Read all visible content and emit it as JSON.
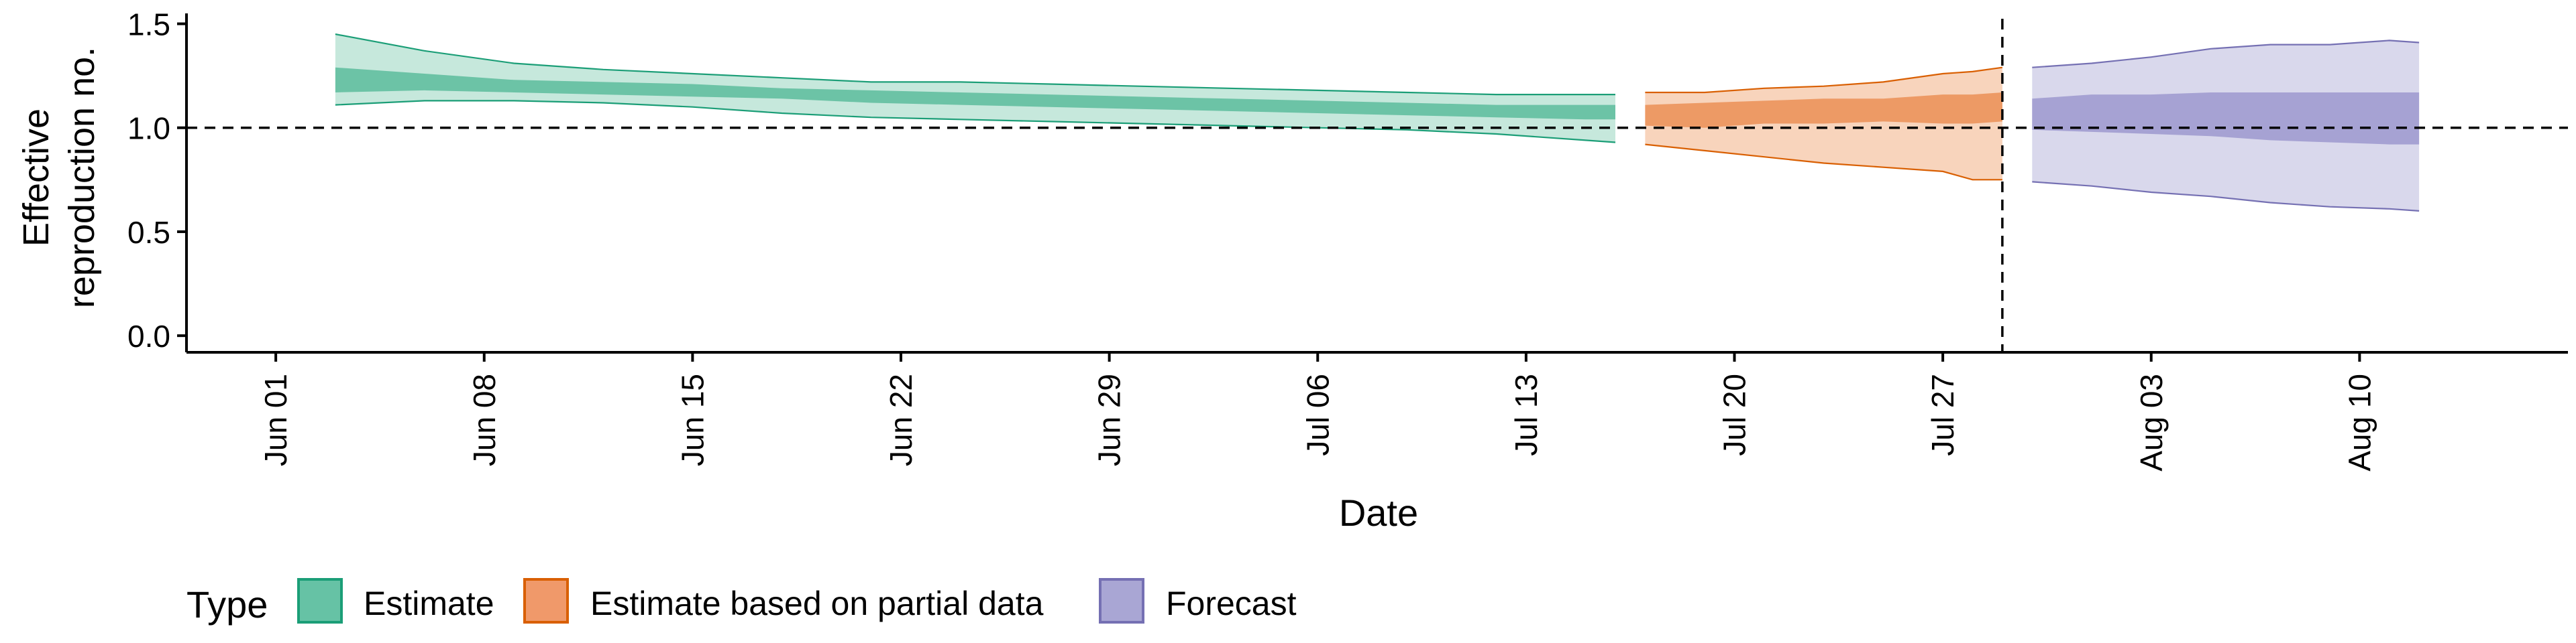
{
  "chart_data": {
    "type": "area",
    "xlabel": "Date",
    "ylabel_lines": [
      "Effective",
      "reproduction no."
    ],
    "ylim": [
      -0.08,
      1.55
    ],
    "yticks": [
      0.0,
      0.5,
      1.0,
      1.5
    ],
    "ytick_labels": [
      "0.0",
      "0.5",
      "1.0",
      "1.5"
    ],
    "xlim": [
      "2020-05-29",
      "2020-08-17"
    ],
    "xticks": [
      "2020-06-01",
      "2020-06-08",
      "2020-06-15",
      "2020-06-22",
      "2020-06-29",
      "2020-07-06",
      "2020-07-13",
      "2020-07-20",
      "2020-07-27",
      "2020-08-03",
      "2020-08-10"
    ],
    "xtick_labels": [
      "Jun 01",
      "Jun 08",
      "Jun 15",
      "Jun 22",
      "Jun 29",
      "Jul 06",
      "Jul 13",
      "Jul 20",
      "Jul 27",
      "Aug 03",
      "Aug 10"
    ],
    "reference_hline": 1.0,
    "reference_vline": "2020-07-29",
    "legend": {
      "title": "Type",
      "position": "bottom",
      "entries": [
        {
          "label": "Estimate",
          "fill": "#66c2a5",
          "stroke": "#1b9e77"
        },
        {
          "label": "Estimate based on partial data",
          "fill": "#f0996a",
          "stroke": "#d95f02"
        },
        {
          "label": "Forecast",
          "fill": "#a9a6d4",
          "stroke": "#7570b3"
        }
      ]
    },
    "colors": {
      "estimate": {
        "light": "#c6e8dc",
        "dark": "#6cc3a6",
        "line": "#1b9e77"
      },
      "partial": {
        "light": "#f8d4bc",
        "dark": "#ed9a65",
        "line": "#d95f02"
      },
      "forecast": {
        "light": "#d9d8ec",
        "dark": "#a6a2d3",
        "line": "#7570b3"
      }
    },
    "series": [
      {
        "name": "Estimate",
        "key": "estimate",
        "x": [
          "2020-06-03",
          "2020-06-06",
          "2020-06-09",
          "2020-06-12",
          "2020-06-15",
          "2020-06-18",
          "2020-06-21",
          "2020-06-24",
          "2020-06-27",
          "2020-06-30",
          "2020-07-03",
          "2020-07-06",
          "2020-07-09",
          "2020-07-12",
          "2020-07-15",
          "2020-07-16"
        ],
        "lower90": [
          1.11,
          1.13,
          1.13,
          1.12,
          1.1,
          1.07,
          1.05,
          1.04,
          1.03,
          1.02,
          1.01,
          1.0,
          0.99,
          0.97,
          0.94,
          0.93
        ],
        "upper90": [
          1.45,
          1.37,
          1.31,
          1.28,
          1.26,
          1.24,
          1.22,
          1.22,
          1.21,
          1.2,
          1.19,
          1.18,
          1.17,
          1.16,
          1.16,
          1.16
        ],
        "lower50": [
          1.17,
          1.18,
          1.17,
          1.16,
          1.15,
          1.14,
          1.12,
          1.11,
          1.1,
          1.09,
          1.08,
          1.07,
          1.06,
          1.05,
          1.04,
          1.04
        ],
        "upper50": [
          1.29,
          1.26,
          1.23,
          1.22,
          1.21,
          1.19,
          1.18,
          1.17,
          1.16,
          1.15,
          1.14,
          1.13,
          1.12,
          1.11,
          1.11,
          1.11
        ]
      },
      {
        "name": "Estimate based on partial data",
        "key": "partial",
        "x": [
          "2020-07-17",
          "2020-07-19",
          "2020-07-21",
          "2020-07-23",
          "2020-07-25",
          "2020-07-27",
          "2020-07-28",
          "2020-07-29"
        ],
        "lower90": [
          0.92,
          0.89,
          0.86,
          0.83,
          0.81,
          0.79,
          0.75,
          0.75
        ],
        "upper90": [
          1.17,
          1.17,
          1.19,
          1.2,
          1.22,
          1.26,
          1.27,
          1.29
        ],
        "lower50": [
          1.01,
          1.0,
          1.02,
          1.02,
          1.03,
          1.02,
          1.02,
          1.03
        ],
        "upper50": [
          1.11,
          1.12,
          1.13,
          1.14,
          1.14,
          1.16,
          1.16,
          1.17
        ]
      },
      {
        "name": "Forecast",
        "key": "forecast",
        "x": [
          "2020-07-30",
          "2020-08-01",
          "2020-08-03",
          "2020-08-05",
          "2020-08-07",
          "2020-08-09",
          "2020-08-11",
          "2020-08-12"
        ],
        "lower90": [
          0.74,
          0.72,
          0.69,
          0.67,
          0.64,
          0.62,
          0.61,
          0.6
        ],
        "upper90": [
          1.29,
          1.31,
          1.34,
          1.38,
          1.4,
          1.4,
          1.42,
          1.41
        ],
        "lower50": [
          0.99,
          0.98,
          0.97,
          0.96,
          0.94,
          0.93,
          0.92,
          0.92
        ],
        "upper50": [
          1.14,
          1.16,
          1.16,
          1.17,
          1.17,
          1.17,
          1.17,
          1.17
        ]
      }
    ]
  }
}
